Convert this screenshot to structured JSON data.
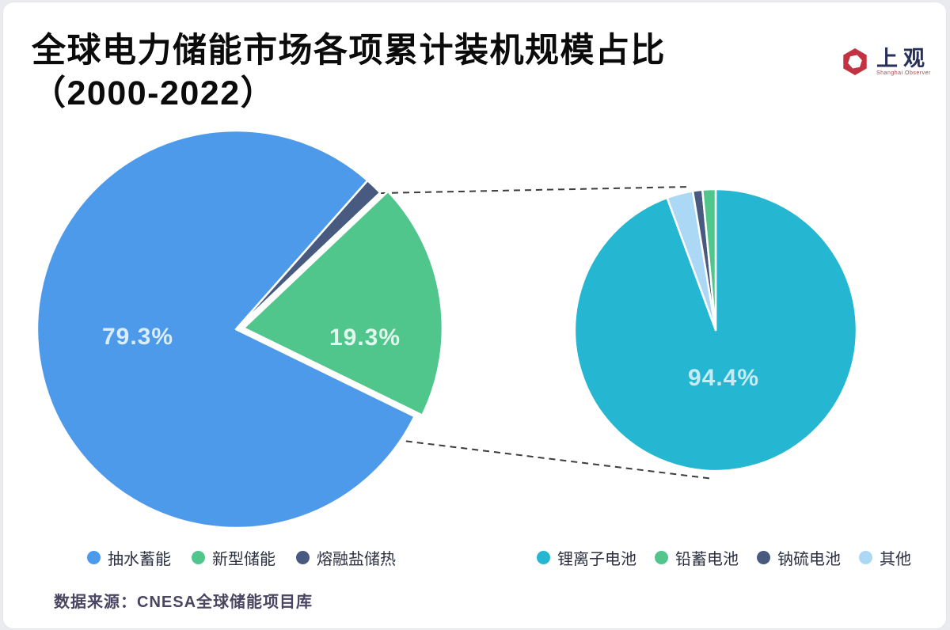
{
  "header": {
    "title_line1": "全球电力储能市场各项累计装机规模占比",
    "title_line2": "（2000-2022）"
  },
  "logo": {
    "brand": "上观",
    "subtitle": "Shanghai Observer",
    "brand_color": "#c23240"
  },
  "chart_data": [
    {
      "type": "pie",
      "name": "global-storage-market-mix",
      "categories": [
        "抽水蓄能",
        "新型储能",
        "熔融盐储热"
      ],
      "values": [
        79.3,
        19.3,
        1.4
      ],
      "colors": [
        "#4d99ea",
        "#50c58c",
        "#485a7f"
      ],
      "data_labels": [
        "79.3%",
        "19.3%",
        ""
      ],
      "legend_position": "bottom",
      "exploded_slice": "新型储能"
    },
    {
      "type": "pie",
      "name": "new-type-storage-breakdown",
      "categories": [
        "锂离子电池",
        "铅蓄电池",
        "钠硫电池",
        "其他"
      ],
      "values": [
        94.4,
        1.5,
        1.1,
        3.0
      ],
      "colors": [
        "#25b6d1",
        "#50c58c",
        "#485a7f",
        "#aad8f5"
      ],
      "data_labels": [
        "94.4%",
        "",
        "",
        ""
      ],
      "legend_position": "bottom",
      "detail_of": "新型储能"
    }
  ],
  "footer": {
    "source": "数据来源：CNESA全球储能项目库"
  }
}
